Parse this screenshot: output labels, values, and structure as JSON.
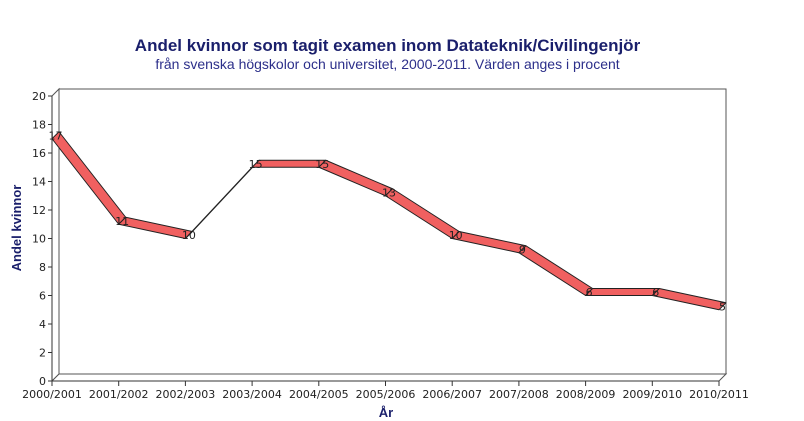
{
  "chart_data": {
    "type": "line",
    "title": "Andel kvinnor som tagit examen inom Datateknik/Civilingenjör",
    "subtitle": "från svenska högskolor och universitet, 2000-2011. Värden anges i procent",
    "xlabel": "År",
    "ylabel": "Andel kvinnor",
    "categories": [
      "2000/2001",
      "2001/2002",
      "2002/2003",
      "2003/2004",
      "2004/2005",
      "2005/2006",
      "2006/2007",
      "2007/2008",
      "2008/2009",
      "2009/2010",
      "2010/2011"
    ],
    "series": [
      {
        "values": [
          17,
          11,
          10,
          15,
          15,
          13,
          10,
          9,
          6,
          6,
          5
        ]
      }
    ],
    "ylim": [
      0,
      20
    ],
    "yticks": [
      0,
      2,
      4,
      6,
      8,
      10,
      12,
      14,
      16,
      18,
      20
    ],
    "grid": false,
    "line_color": "#f06060",
    "line_edge_color": "#222222",
    "axis_color": "#1a1f6b"
  }
}
